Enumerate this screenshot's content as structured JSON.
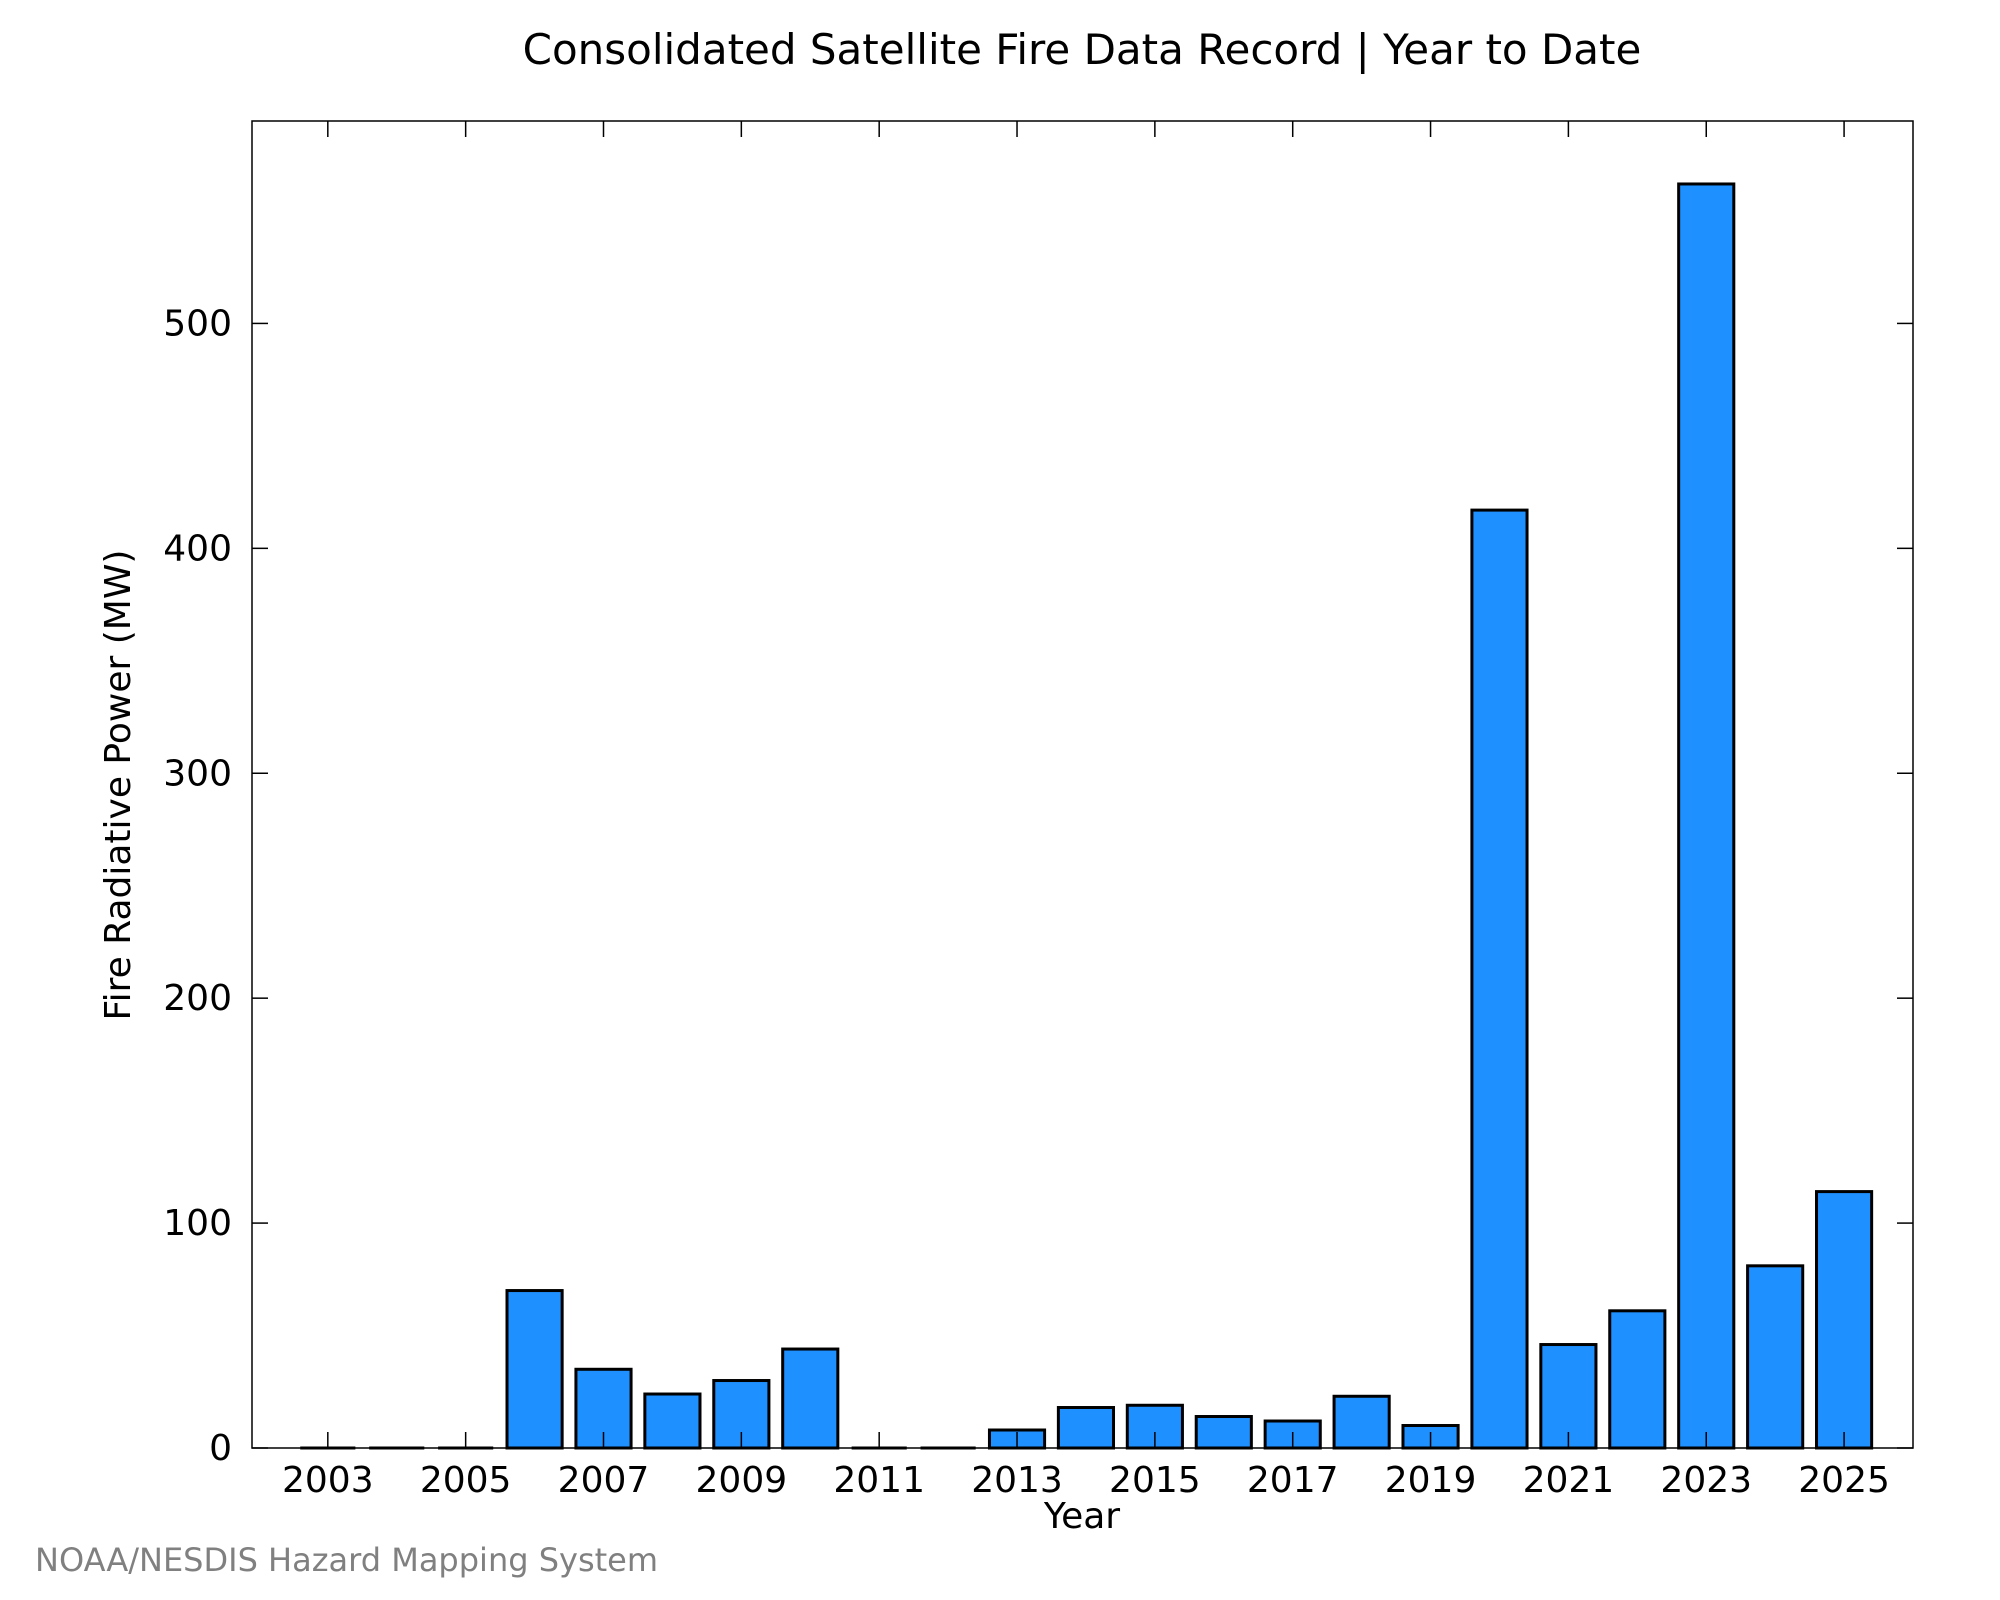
{
  "credit": "NOAA/NESDIS Hazard Mapping System",
  "colors": {
    "bar_fill": "#1e90ff",
    "bar_stroke": "#000000",
    "credit_text": "#808080"
  },
  "chart_data": {
    "type": "bar",
    "title": "Consolidated Satellite Fire Data Record | Year to Date",
    "xlabel": "Year",
    "ylabel": "Fire Radiative Power (MW)",
    "categories": [
      2003,
      2004,
      2005,
      2006,
      2007,
      2008,
      2009,
      2010,
      2011,
      2012,
      2013,
      2014,
      2015,
      2016,
      2017,
      2018,
      2019,
      2020,
      2021,
      2022,
      2023,
      2024,
      2025
    ],
    "values": [
      0,
      0,
      0,
      70,
      35,
      24,
      30,
      44,
      0,
      0,
      8,
      18,
      19,
      14,
      12,
      23,
      10,
      417,
      46,
      61,
      562,
      81,
      114
    ],
    "xlim": [
      2001.9,
      2026
    ],
    "ylim": [
      0,
      590
    ],
    "xticks": [
      2003,
      2005,
      2007,
      2009,
      2011,
      2013,
      2015,
      2017,
      2019,
      2021,
      2023,
      2025
    ],
    "yticks": [
      0,
      100,
      200,
      300,
      400,
      500
    ],
    "grid": false,
    "legend": "none"
  }
}
